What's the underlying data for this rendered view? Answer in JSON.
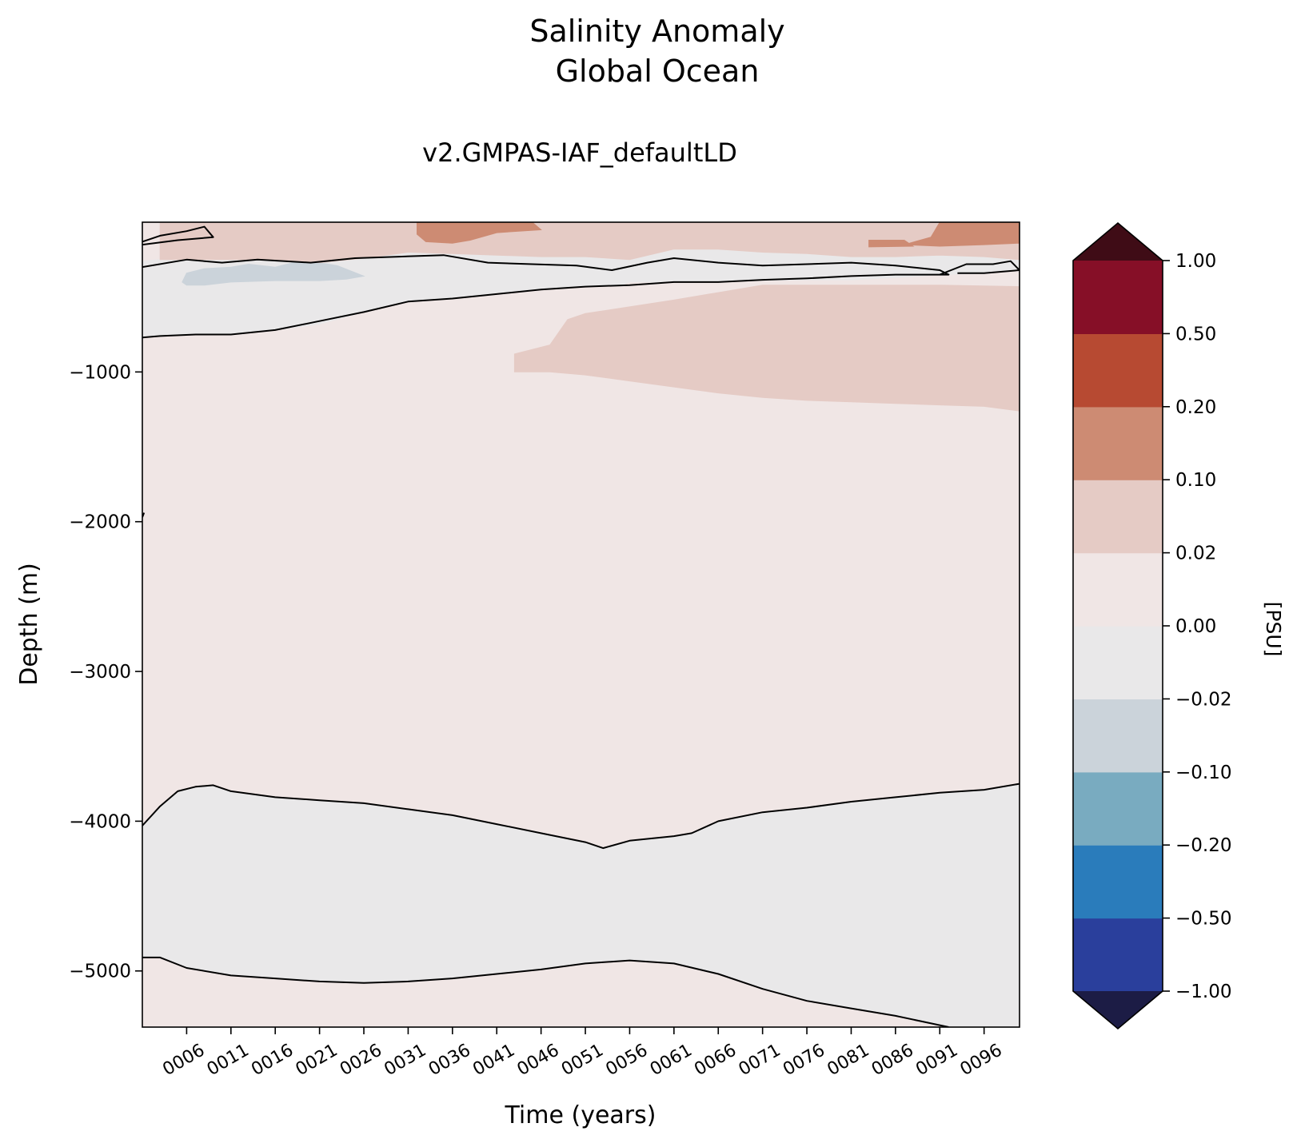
{
  "chart_data": {
    "type": "heatmap",
    "title_line1": "Salinity Anomaly",
    "title_line2": "Global Ocean",
    "subtitle": "v2.GMPAS-IAF_defaultLD",
    "xlabel": "Time (years)",
    "ylabel": "Depth (m)",
    "colorbar_label": "[PSU]",
    "xlim": [
      1.0,
      100.0
    ],
    "ylim": [
      -5375,
      0
    ],
    "x_ticks": [
      6,
      11,
      16,
      21,
      26,
      31,
      36,
      41,
      46,
      51,
      56,
      61,
      66,
      71,
      76,
      81,
      86,
      91,
      96
    ],
    "x_tick_labels": [
      "0006",
      "0011",
      "0016",
      "0021",
      "0026",
      "0031",
      "0036",
      "0041",
      "0046",
      "0051",
      "0056",
      "0061",
      "0066",
      "0071",
      "0076",
      "0081",
      "0086",
      "0091",
      "0096"
    ],
    "y_ticks": [
      -1000,
      -2000,
      -3000,
      -4000,
      -5000
    ],
    "y_tick_labels": [
      "−1000",
      "−2000",
      "−3000",
      "−4000",
      "−5000"
    ],
    "colorbar_levels": [
      -1.0,
      -0.5,
      -0.2,
      -0.1,
      -0.02,
      0.0,
      0.02,
      0.1,
      0.2,
      0.5,
      1.0
    ],
    "colorbar_tick_labels": [
      "−1.00",
      "−0.50",
      "−0.20",
      "−0.10",
      "−0.02",
      "0.00",
      "0.02",
      "0.10",
      "0.20",
      "0.50",
      "1.00"
    ],
    "colorbar_colors": [
      "#2a3f9c",
      "#2a7cbb",
      "#79abc0",
      "#cbd3da",
      "#e9e8e9",
      "#f0e6e5",
      "#e5cbc5",
      "#cd8b73",
      "#b74a32",
      "#860f27"
    ],
    "colorbar_extend_low_color": "#1c1c45",
    "colorbar_extend_high_color": "#3f0c16",
    "background_fill_color": "#f0e6e5",
    "regions": [
      {
        "level": "-0.02 to 0.00",
        "color": "#e9e8e9",
        "polygon": [
          [
            1,
            -770
          ],
          [
            3,
            -760
          ],
          [
            7,
            -750
          ],
          [
            11,
            -750
          ],
          [
            16,
            -720
          ],
          [
            21,
            -680
          ],
          [
            26,
            -600
          ],
          [
            31,
            -530
          ],
          [
            36,
            -510
          ],
          [
            41,
            -470
          ],
          [
            46,
            -450
          ],
          [
            51,
            -430
          ],
          [
            55,
            -420
          ],
          [
            56,
            -400
          ],
          [
            61,
            -400
          ],
          [
            66,
            -395
          ],
          [
            71,
            -390
          ],
          [
            76,
            -385
          ],
          [
            81,
            -385
          ],
          [
            86,
            -370
          ],
          [
            91,
            -350
          ],
          [
            96,
            -340
          ],
          [
            100,
            -320
          ],
          [
            100,
            -250
          ],
          [
            96,
            -230
          ],
          [
            91,
            -220
          ],
          [
            86,
            -230
          ],
          [
            81,
            -230
          ],
          [
            76,
            -210
          ],
          [
            71,
            -200
          ],
          [
            66,
            -180
          ],
          [
            61,
            -180
          ],
          [
            56,
            -250
          ],
          [
            51,
            -230
          ],
          [
            46,
            -230
          ],
          [
            41,
            -220
          ],
          [
            36,
            -210
          ],
          [
            31,
            -200
          ],
          [
            26,
            -240
          ],
          [
            21,
            -270
          ],
          [
            16,
            -250
          ],
          [
            11,
            -250
          ],
          [
            6,
            -250
          ],
          [
            3,
            -250
          ],
          [
            1,
            -260
          ]
        ]
      },
      {
        "level": "-0.02 to 0.00",
        "color": "#e9e8e9",
        "polygon": [
          [
            1,
            -4030
          ],
          [
            3,
            -3900
          ],
          [
            5,
            -3800
          ],
          [
            7,
            -3770
          ],
          [
            9,
            -3760
          ],
          [
            11,
            -3800
          ],
          [
            16,
            -3840
          ],
          [
            21,
            -3860
          ],
          [
            26,
            -3880
          ],
          [
            31,
            -3920
          ],
          [
            36,
            -3960
          ],
          [
            41,
            -4020
          ],
          [
            46,
            -4080
          ],
          [
            51,
            -4140
          ],
          [
            53,
            -4180
          ],
          [
            56,
            -4130
          ],
          [
            61,
            -4100
          ],
          [
            63,
            -4080
          ],
          [
            66,
            -4000
          ],
          [
            71,
            -3940
          ],
          [
            76,
            -3910
          ],
          [
            81,
            -3870
          ],
          [
            86,
            -3840
          ],
          [
            91,
            -3810
          ],
          [
            96,
            -3790
          ],
          [
            100,
            -3750
          ],
          [
            100,
            -5375
          ],
          [
            92,
            -5375
          ],
          [
            86,
            -5300
          ],
          [
            81,
            -5250
          ],
          [
            76,
            -5200
          ],
          [
            71,
            -5120
          ],
          [
            66,
            -5020
          ],
          [
            61,
            -4950
          ],
          [
            56,
            -4930
          ],
          [
            51,
            -4950
          ],
          [
            46,
            -4990
          ],
          [
            41,
            -5020
          ],
          [
            36,
            -5050
          ],
          [
            31,
            -5070
          ],
          [
            26,
            -5080
          ],
          [
            21,
            -5070
          ],
          [
            16,
            -5050
          ],
          [
            11,
            -5030
          ],
          [
            6,
            -4980
          ],
          [
            3,
            -4910
          ],
          [
            1,
            -4910
          ]
        ]
      },
      {
        "level": "-0.10 to -0.02",
        "color": "#cbd3da",
        "polygon": [
          [
            5.5,
            -400
          ],
          [
            6,
            -340
          ],
          [
            8,
            -310
          ],
          [
            11,
            -300
          ],
          [
            13,
            -280
          ],
          [
            16,
            -300
          ],
          [
            18,
            -270
          ],
          [
            21,
            -270
          ],
          [
            23,
            -290
          ],
          [
            26,
            -360
          ],
          [
            24,
            -380
          ],
          [
            21,
            -390
          ],
          [
            16,
            -390
          ],
          [
            11,
            -400
          ],
          [
            8,
            -420
          ],
          [
            6,
            -420
          ]
        ]
      },
      {
        "level": "0.02 to 0.10",
        "color": "#e5cbc5",
        "polygon": [
          [
            43,
            -1000
          ],
          [
            47,
            -1000
          ],
          [
            51,
            -1020
          ],
          [
            56,
            -1060
          ],
          [
            61,
            -1100
          ],
          [
            66,
            -1140
          ],
          [
            71,
            -1170
          ],
          [
            76,
            -1190
          ],
          [
            81,
            -1200
          ],
          [
            86,
            -1210
          ],
          [
            91,
            -1220
          ],
          [
            96,
            -1230
          ],
          [
            100,
            -1260
          ],
          [
            100,
            -430
          ],
          [
            91,
            -420
          ],
          [
            81,
            -420
          ],
          [
            71,
            -420
          ],
          [
            61,
            -520
          ],
          [
            51,
            -610
          ],
          [
            49,
            -650
          ],
          [
            47,
            -820
          ],
          [
            43,
            -880
          ]
        ]
      },
      {
        "level": "0.02 to 0.10",
        "color": "#e5cbc5",
        "polygon": [
          [
            3,
            0
          ],
          [
            100,
            0
          ],
          [
            100,
            -250
          ],
          [
            96,
            -230
          ],
          [
            91,
            -220
          ],
          [
            86,
            -230
          ],
          [
            81,
            -230
          ],
          [
            76,
            -210
          ],
          [
            71,
            -200
          ],
          [
            66,
            -180
          ],
          [
            61,
            -180
          ],
          [
            56,
            -250
          ],
          [
            51,
            -230
          ],
          [
            46,
            -230
          ],
          [
            41,
            -220
          ],
          [
            36,
            -210
          ],
          [
            31,
            -200
          ],
          [
            26,
            -240
          ],
          [
            21,
            -270
          ],
          [
            16,
            -250
          ],
          [
            11,
            -250
          ],
          [
            6,
            -250
          ],
          [
            3,
            -250
          ]
        ]
      },
      {
        "level": "0.10 to 0.20",
        "color": "#cd8b73",
        "polygon": [
          [
            32,
            0
          ],
          [
            45,
            0
          ],
          [
            46,
            -50
          ],
          [
            41,
            -70
          ],
          [
            38,
            -120
          ],
          [
            36,
            -140
          ],
          [
            33,
            -130
          ],
          [
            32,
            -80
          ]
        ]
      },
      {
        "level": "0.10 to 0.20",
        "color": "#cd8b73",
        "polygon": [
          [
            91,
            0
          ],
          [
            100,
            0
          ],
          [
            100,
            -140
          ],
          [
            96,
            -150
          ],
          [
            91,
            -160
          ],
          [
            87,
            -150
          ],
          [
            90,
            -100
          ]
        ]
      },
      {
        "level": "0.10 to 0.20",
        "color": "#cd8b73",
        "polygon": [
          [
            83,
            -120
          ],
          [
            87,
            -120
          ],
          [
            88,
            -160
          ],
          [
            83,
            -165
          ]
        ]
      }
    ],
    "contours": [
      {
        "level": 0.0,
        "points": [
          [
            1,
            -130
          ],
          [
            3,
            -90
          ],
          [
            6,
            -60
          ],
          [
            8,
            -30
          ],
          [
            9,
            -100
          ],
          [
            5,
            -120
          ],
          [
            1,
            -150
          ]
        ]
      },
      {
        "level": 0.0,
        "points": [
          [
            1,
            -300
          ],
          [
            6,
            -250
          ],
          [
            10,
            -270
          ],
          [
            14,
            -250
          ],
          [
            20,
            -270
          ],
          [
            25,
            -240
          ],
          [
            30,
            -230
          ],
          [
            35,
            -220
          ],
          [
            40,
            -270
          ],
          [
            45,
            -280
          ],
          [
            50,
            -290
          ],
          [
            54,
            -320
          ],
          [
            58,
            -270
          ],
          [
            61,
            -240
          ],
          [
            66,
            -270
          ],
          [
            71,
            -290
          ],
          [
            76,
            -280
          ],
          [
            81,
            -270
          ],
          [
            86,
            -290
          ],
          [
            91,
            -320
          ],
          [
            92,
            -350
          ],
          [
            86,
            -350
          ],
          [
            81,
            -360
          ],
          [
            76,
            -375
          ],
          [
            71,
            -385
          ],
          [
            66,
            -400
          ],
          [
            61,
            -400
          ],
          [
            56,
            -420
          ],
          [
            51,
            -430
          ],
          [
            46,
            -450
          ],
          [
            41,
            -480
          ],
          [
            36,
            -510
          ],
          [
            31,
            -530
          ],
          [
            26,
            -600
          ],
          [
            21,
            -660
          ],
          [
            16,
            -720
          ],
          [
            11,
            -750
          ],
          [
            7,
            -750
          ],
          [
            3,
            -760
          ],
          [
            1,
            -770
          ]
        ]
      },
      {
        "level": 0.0,
        "points": [
          [
            91,
            -350
          ],
          [
            94,
            -280
          ],
          [
            97,
            -280
          ],
          [
            99,
            -260
          ],
          [
            100,
            -320
          ],
          [
            96,
            -340
          ],
          [
            93,
            -340
          ]
        ]
      },
      {
        "level": 0.0,
        "points": [
          [
            1,
            -1970
          ],
          [
            1.2,
            -1940
          ]
        ]
      },
      {
        "level": 0.0,
        "points": [
          [
            1,
            -4030
          ],
          [
            3,
            -3900
          ],
          [
            5,
            -3800
          ],
          [
            7,
            -3770
          ],
          [
            9,
            -3760
          ],
          [
            11,
            -3800
          ],
          [
            16,
            -3840
          ],
          [
            21,
            -3860
          ],
          [
            26,
            -3880
          ],
          [
            31,
            -3920
          ],
          [
            36,
            -3960
          ],
          [
            41,
            -4020
          ],
          [
            46,
            -4080
          ],
          [
            51,
            -4140
          ],
          [
            53,
            -4180
          ],
          [
            56,
            -4130
          ],
          [
            61,
            -4100
          ],
          [
            63,
            -4080
          ],
          [
            66,
            -4000
          ],
          [
            71,
            -3940
          ],
          [
            76,
            -3910
          ],
          [
            81,
            -3870
          ],
          [
            86,
            -3840
          ],
          [
            91,
            -3810
          ],
          [
            96,
            -3790
          ],
          [
            100,
            -3750
          ]
        ]
      },
      {
        "level": 0.0,
        "points": [
          [
            1,
            -4910
          ],
          [
            3,
            -4910
          ],
          [
            6,
            -4980
          ],
          [
            11,
            -5030
          ],
          [
            16,
            -5050
          ],
          [
            21,
            -5070
          ],
          [
            26,
            -5080
          ],
          [
            31,
            -5070
          ],
          [
            36,
            -5050
          ],
          [
            41,
            -5020
          ],
          [
            46,
            -4990
          ],
          [
            51,
            -4950
          ],
          [
            56,
            -4930
          ],
          [
            61,
            -4950
          ],
          [
            66,
            -5020
          ],
          [
            71,
            -5120
          ],
          [
            76,
            -5200
          ],
          [
            81,
            -5250
          ],
          [
            86,
            -5300
          ],
          [
            92,
            -5375
          ]
        ]
      }
    ]
  }
}
